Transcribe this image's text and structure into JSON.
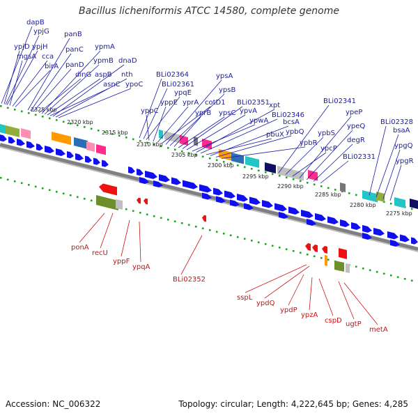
{
  "title": "Bacillus licheniformis ATCC 14580, complete genome",
  "footer": {
    "accession": "Accession: NC_006322",
    "summary": "Topology: circular; Length: 4,222,645 bp; Genes: 4,285"
  },
  "colors": {
    "forward_label": "#1a1aa6",
    "reverse_label": "#cc1111",
    "forward_arrow": "#1010ee",
    "reverse_arrow": "#ee1111",
    "tick_green": "#1e9e1e",
    "backbone": "#808080"
  },
  "scale_labels": [
    "2325 kbp",
    "2320 kbp",
    "2315 kbp",
    "2310 kbp",
    "2305 kbp",
    "2300 kbp",
    "2295 kbp",
    "2290 kbp",
    "2285 kbp",
    "2280 kbp",
    "2275 kbp"
  ],
  "forward_genes": [
    "dapB",
    "ypjG",
    "ypjD",
    "ypjH",
    "mgsA",
    "cca",
    "birA",
    "panB",
    "panC",
    "panD",
    "dinG",
    "ypmA",
    "ypmB",
    "aspB",
    "asnC",
    "dnaD",
    "nth",
    "ypoC",
    "BLi02364",
    "BLi02361",
    "ypqE",
    "yppC",
    "yppE",
    "yprA",
    "cotD1",
    "ypsA",
    "ypsB",
    "yprB",
    "ypsC",
    "BLi02351",
    "ypvA",
    "ypwA",
    "xpt",
    "BLi02346",
    "pbuX",
    "bcsA",
    "ypbQ",
    "ypbR",
    "BLi02341",
    "ypbS",
    "ypcP",
    "ypeP",
    "ypeQ",
    "degR",
    "BLi02331",
    "BLi02328",
    "bsaA",
    "ypgQ",
    "ypgR"
  ],
  "reverse_genes": [
    "ponA",
    "recU",
    "yppF",
    "ypqA",
    "BLi02352",
    "sspL",
    "ypdQ",
    "ypdP",
    "ypzA",
    "cspD",
    "ugtP",
    "metA"
  ]
}
